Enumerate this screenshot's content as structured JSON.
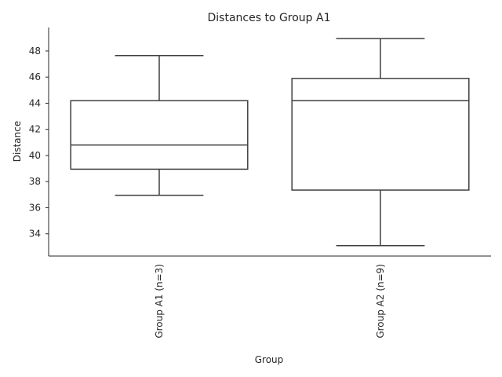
{
  "chart_data": {
    "type": "box",
    "title": "Distances to Group A1",
    "xlabel": "Group",
    "ylabel": "Distance",
    "ylim": [
      32.3,
      49.8
    ],
    "yticks": [
      34,
      36,
      38,
      40,
      42,
      44,
      46,
      48
    ],
    "categories": [
      "Group A1 (n=3)",
      "Group A2 (n=9)"
    ],
    "boxes": [
      {
        "category": "Group A1 (n=3)",
        "whisker_low": 36.95,
        "q1": 38.95,
        "median": 40.8,
        "q3": 44.2,
        "whisker_high": 47.65
      },
      {
        "category": "Group A2 (n=9)",
        "whisker_low": 33.1,
        "q1": 37.35,
        "median": 44.2,
        "q3": 45.9,
        "whisker_high": 48.95
      }
    ],
    "grid": false,
    "colors": {
      "box_line": "#3f3f3f",
      "axis": "#262626",
      "fill": "#ffffff"
    }
  }
}
